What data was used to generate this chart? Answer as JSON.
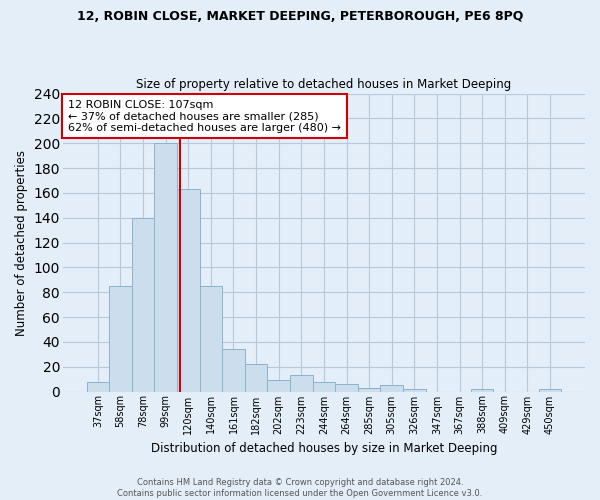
{
  "title1": "12, ROBIN CLOSE, MARKET DEEPING, PETERBOROUGH, PE6 8PQ",
  "title2": "Size of property relative to detached houses in Market Deeping",
  "xlabel": "Distribution of detached houses by size in Market Deeping",
  "ylabel": "Number of detached properties",
  "bar_labels": [
    "37sqm",
    "58sqm",
    "78sqm",
    "99sqm",
    "120sqm",
    "140sqm",
    "161sqm",
    "182sqm",
    "202sqm",
    "223sqm",
    "244sqm",
    "264sqm",
    "285sqm",
    "305sqm",
    "326sqm",
    "347sqm",
    "367sqm",
    "388sqm",
    "409sqm",
    "429sqm",
    "450sqm"
  ],
  "bar_values": [
    8,
    85,
    140,
    200,
    163,
    85,
    34,
    22,
    9,
    13,
    8,
    6,
    3,
    5,
    2,
    0,
    0,
    2,
    0,
    0,
    2
  ],
  "bar_color": "#ccdded",
  "bar_edge_color": "#8ab4cc",
  "vline_x": 3.65,
  "vline_color": "#cc0000",
  "annotation_text": "12 ROBIN CLOSE: 107sqm\n← 37% of detached houses are smaller (285)\n62% of semi-detached houses are larger (480) →",
  "annotation_box_color": "#ffffff",
  "annotation_box_edge": "#cc0000",
  "grid_color": "#b8c8dc",
  "background_color": "#e4eef8",
  "footer1": "Contains HM Land Registry data © Crown copyright and database right 2024.",
  "footer2": "Contains public sector information licensed under the Open Government Licence v3.0.",
  "ylim": [
    0,
    240
  ],
  "yticks": [
    0,
    20,
    40,
    60,
    80,
    100,
    120,
    140,
    160,
    180,
    200,
    220,
    240
  ]
}
